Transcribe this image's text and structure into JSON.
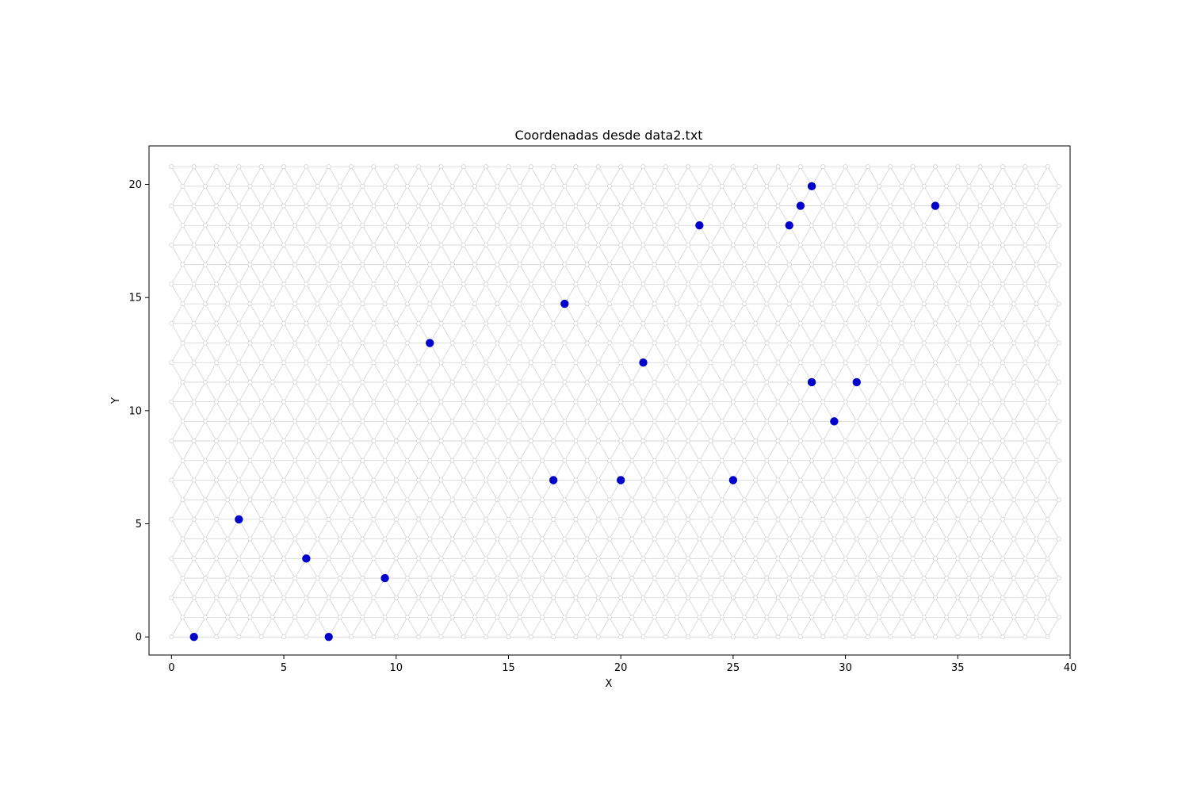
{
  "chart_data": {
    "type": "scatter",
    "title": "Coordenadas desde data2.txt",
    "xlabel": "X",
    "ylabel": "Y",
    "xlim": [
      -1,
      40
    ],
    "ylim": [
      -0.8,
      21.7
    ],
    "xticks": [
      0,
      5,
      10,
      15,
      20,
      25,
      30,
      35,
      40
    ],
    "yticks": [
      0,
      5,
      10,
      15,
      20
    ],
    "xtick_labels": [
      "0",
      "5",
      "10",
      "15",
      "20",
      "25",
      "30",
      "35",
      "40"
    ],
    "ytick_labels": [
      "0",
      "5",
      "10",
      "15",
      "20"
    ],
    "background_lattice": {
      "type": "triangular",
      "spacing": 1,
      "row_count": 25,
      "columns": 40,
      "color": "#d3d3d3"
    },
    "series": [
      {
        "color": "#0000cc",
        "points": [
          {
            "x": 1,
            "y": 0
          },
          {
            "x": 7,
            "y": 0
          },
          {
            "x": 3,
            "y": 5.196
          },
          {
            "x": 6,
            "y": 3.464
          },
          {
            "x": 9.5,
            "y": 2.598
          },
          {
            "x": 11.5,
            "y": 12.99
          },
          {
            "x": 17.5,
            "y": 14.722
          },
          {
            "x": 21,
            "y": 12.124
          },
          {
            "x": 17,
            "y": 6.928
          },
          {
            "x": 20,
            "y": 6.928
          },
          {
            "x": 25,
            "y": 6.928
          },
          {
            "x": 23.5,
            "y": 18.187
          },
          {
            "x": 27.5,
            "y": 18.187
          },
          {
            "x": 28,
            "y": 19.053
          },
          {
            "x": 28.5,
            "y": 19.919
          },
          {
            "x": 34,
            "y": 19.053
          },
          {
            "x": 28.5,
            "y": 11.258
          },
          {
            "x": 30.5,
            "y": 11.258
          },
          {
            "x": 29.5,
            "y": 9.526
          }
        ]
      }
    ]
  }
}
